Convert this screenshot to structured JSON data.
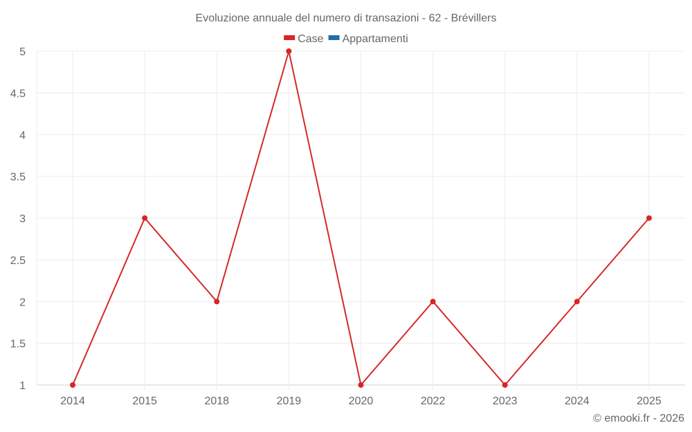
{
  "chart_data": {
    "type": "line",
    "title": "Evoluzione annuale del numero di transazioni - 62 - Brévillers",
    "xlabel": "",
    "ylabel": "",
    "categories": [
      "2014",
      "2015",
      "2018",
      "2019",
      "2020",
      "2022",
      "2023",
      "2024",
      "2025"
    ],
    "series": [
      {
        "name": "Case",
        "color": "#d62728",
        "values": [
          1,
          3,
          2,
          5,
          1,
          2,
          1,
          2,
          3
        ]
      },
      {
        "name": "Appartamenti",
        "color": "#1f6fa8",
        "values": []
      }
    ],
    "ylim": [
      1,
      5
    ],
    "yticks": [
      "1",
      "1.5",
      "2",
      "2.5",
      "3",
      "3.5",
      "4",
      "4.5",
      "5"
    ],
    "grid": true,
    "legend_position": "top"
  },
  "credit": "© emooki.fr - 2026"
}
